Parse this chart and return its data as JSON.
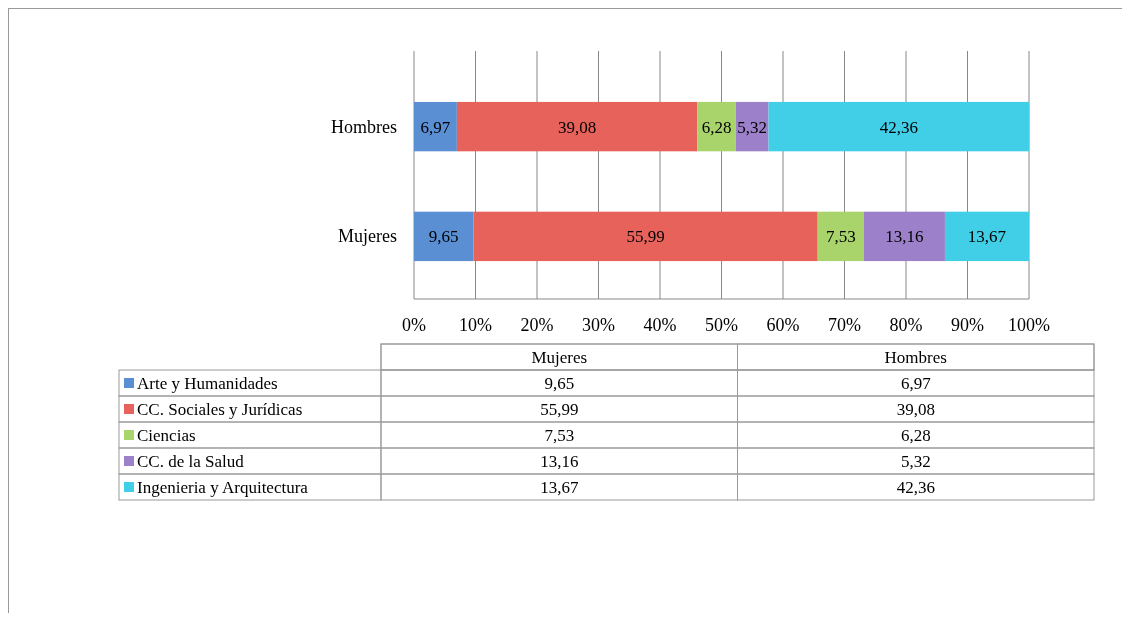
{
  "chart_data": {
    "type": "bar",
    "orientation": "horizontal",
    "stacked": true,
    "categories": [
      "Hombres",
      "Mujeres"
    ],
    "xlim": [
      0,
      100
    ],
    "xticks": [
      {
        "value": 0,
        "label": "0%"
      },
      {
        "value": 10,
        "label": "10%"
      },
      {
        "value": 20,
        "label": "20%"
      },
      {
        "value": 30,
        "label": "30%"
      },
      {
        "value": 40,
        "label": "40%"
      },
      {
        "value": 50,
        "label": "50%"
      },
      {
        "value": 60,
        "label": "60%"
      },
      {
        "value": 70,
        "label": "70%"
      },
      {
        "value": 80,
        "label": "80%"
      },
      {
        "value": 90,
        "label": "90%"
      },
      {
        "value": 100,
        "label": "100%"
      }
    ],
    "grid": "x",
    "legend": "bottom",
    "series": [
      {
        "name": "Arte y Humanidades",
        "color": "#5b8fd4",
        "values": [
          6.97,
          9.65
        ],
        "value_labels": [
          "6,97",
          "9,65"
        ]
      },
      {
        "name": "CC. Sociales y Jurídicas",
        "color": "#e8625c",
        "values": [
          39.08,
          55.99
        ],
        "value_labels": [
          "39,08",
          "55,99"
        ]
      },
      {
        "name": "Ciencias",
        "color": "#a9d46c",
        "values": [
          6.28,
          7.53
        ],
        "value_labels": [
          "6,28",
          "7,53"
        ]
      },
      {
        "name": "CC. de la Salud",
        "color": "#9c80c9",
        "values": [
          5.32,
          13.16
        ],
        "value_labels": [
          "5,32",
          "13,16"
        ]
      },
      {
        "name": "Ingenieria y Arquitectura",
        "color": "#40cfe6",
        "values": [
          42.36,
          13.67
        ],
        "value_labels": [
          "42,36",
          "13,67"
        ]
      }
    ]
  }
}
